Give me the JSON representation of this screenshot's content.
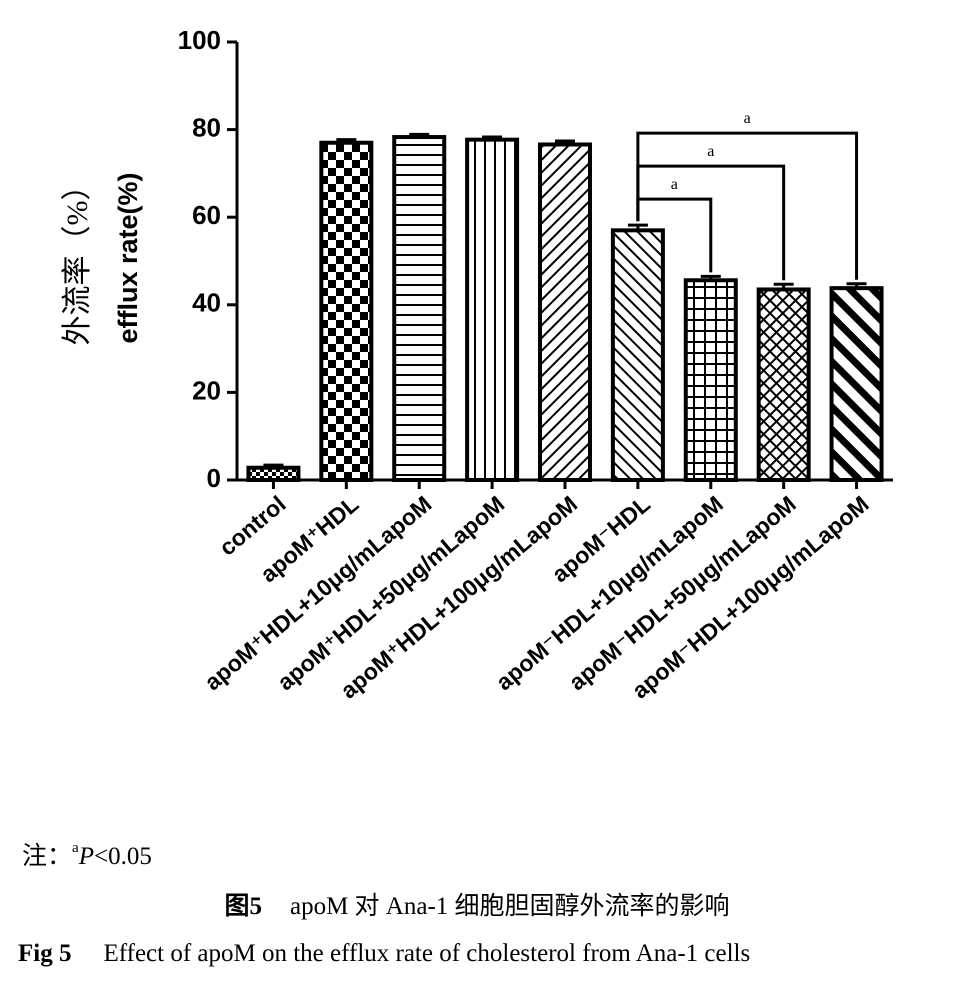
{
  "chart_data": {
    "type": "bar",
    "y_label_cn": "外流率（%）",
    "y_label": "efflux rate(%)",
    "categories": [
      "control",
      "apoM⁺HDL",
      "apoM⁺HDL+10μg/mLapoM",
      "apoM⁺HDL+50μg/mLapoM",
      "apoM⁺HDL+100μg/mLapoM",
      "apoM⁻HDL",
      "apoM⁻HDL+10μg/mLapoM",
      "apoM⁻HDL+50μg/mLapoM",
      "apoM⁻HDL+100μg/mLapoM"
    ],
    "values": [
      2.8,
      77,
      78.3,
      77.7,
      76.6,
      57,
      45.6,
      43.5,
      43.8
    ],
    "errors": [
      0.6,
      0.7,
      0.6,
      0.6,
      0.8,
      1.2,
      0.9,
      1.2,
      1.0
    ],
    "color": "#000000",
    "ylim": [
      0,
      100
    ],
    "yticks": [
      0,
      20,
      40,
      60,
      80,
      100
    ],
    "significance": [
      {
        "from": 5,
        "to": 6,
        "label": "a"
      },
      {
        "from": 5,
        "to": 7,
        "label": "a"
      },
      {
        "from": 5,
        "to": 8,
        "label": "a"
      }
    ]
  },
  "footnote": {
    "prefix": "注：",
    "sup": "a",
    "italic": "P",
    "text": "<0.05"
  },
  "caption_cn": {
    "label": "图5",
    "text": "apoM 对 Ana-1 细胞胆固醇外流率的影响"
  },
  "caption_en": {
    "label": "Fig 5",
    "text": "Effect of apoM on the efflux rate of cholesterol from Ana-1 cells"
  }
}
